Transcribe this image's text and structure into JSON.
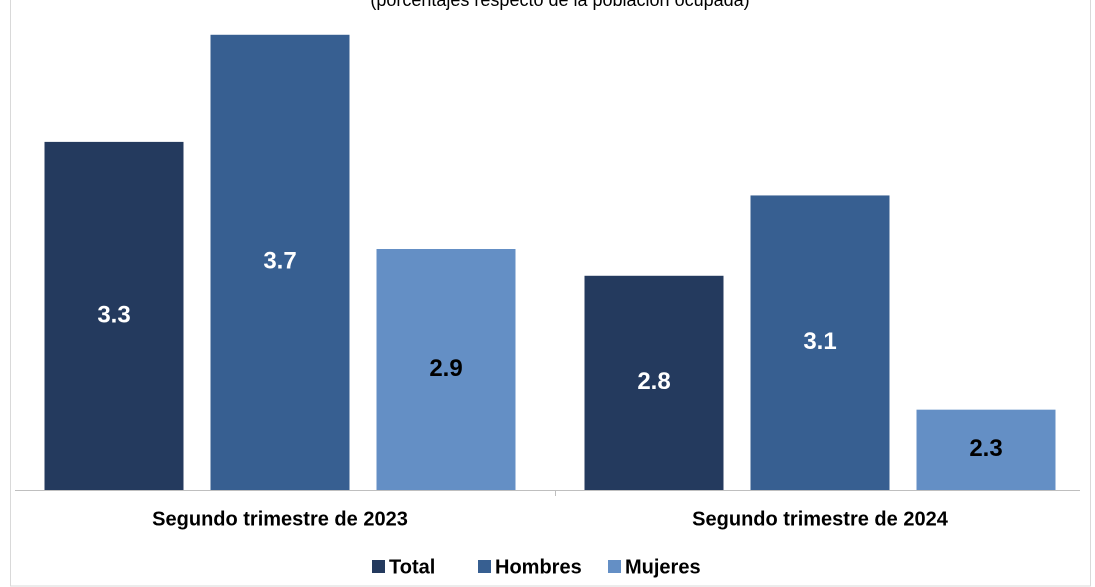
{
  "chart_data": {
    "type": "bar",
    "subtitle": "(porcentajes respecto de la población ocupada)",
    "categories": [
      "Segundo trimestre de 2023",
      "Segundo trimestre de 2024"
    ],
    "series": [
      {
        "name": "Total",
        "color": "#243a5e",
        "label_color": "#ffffff",
        "values": [
          3.3,
          2.8
        ]
      },
      {
        "name": "Hombres",
        "color": "#375f91",
        "label_color": "#ffffff",
        "values": [
          3.7,
          3.1
        ]
      },
      {
        "name": "Mujeres",
        "color": "#648fc5",
        "label_color": "#000000",
        "values": [
          2.9,
          2.3
        ]
      }
    ],
    "ylim": [
      2,
      3.8
    ],
    "legend": "bottom"
  }
}
